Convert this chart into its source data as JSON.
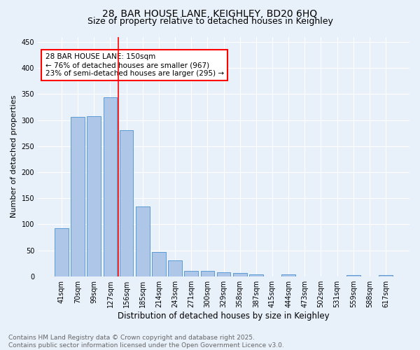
{
  "title1": "28, BAR HOUSE LANE, KEIGHLEY, BD20 6HQ",
  "title2": "Size of property relative to detached houses in Keighley",
  "xlabel": "Distribution of detached houses by size in Keighley",
  "ylabel": "Number of detached properties",
  "categories": [
    "41sqm",
    "70sqm",
    "99sqm",
    "127sqm",
    "156sqm",
    "185sqm",
    "214sqm",
    "243sqm",
    "271sqm",
    "300sqm",
    "329sqm",
    "358sqm",
    "387sqm",
    "415sqm",
    "444sqm",
    "473sqm",
    "502sqm",
    "531sqm",
    "559sqm",
    "588sqm",
    "617sqm"
  ],
  "values": [
    93,
    306,
    307,
    344,
    281,
    134,
    47,
    31,
    10,
    11,
    8,
    6,
    4,
    0,
    3,
    0,
    0,
    0,
    2,
    0,
    2
  ],
  "bar_color": "#aec6e8",
  "bar_edge_color": "#5b9bd5",
  "vline_index": 4,
  "vline_color": "red",
  "annotation_text": "28 BAR HOUSE LANE: 150sqm\n← 76% of detached houses are smaller (967)\n23% of semi-detached houses are larger (295) →",
  "annotation_box_color": "white",
  "annotation_box_edge_color": "red",
  "ylim": [
    0,
    460
  ],
  "yticks": [
    0,
    50,
    100,
    150,
    200,
    250,
    300,
    350,
    400,
    450
  ],
  "bg_color": "#e8f0fa",
  "plot_bg_color": "#e8f0fa",
  "footer_text": "Contains HM Land Registry data © Crown copyright and database right 2025.\nContains public sector information licensed under the Open Government Licence v3.0.",
  "grid_color": "white",
  "title1_fontsize": 10,
  "title2_fontsize": 9,
  "xlabel_fontsize": 8.5,
  "ylabel_fontsize": 8,
  "tick_fontsize": 7,
  "footer_fontsize": 6.5,
  "annotation_fontsize": 7.5
}
